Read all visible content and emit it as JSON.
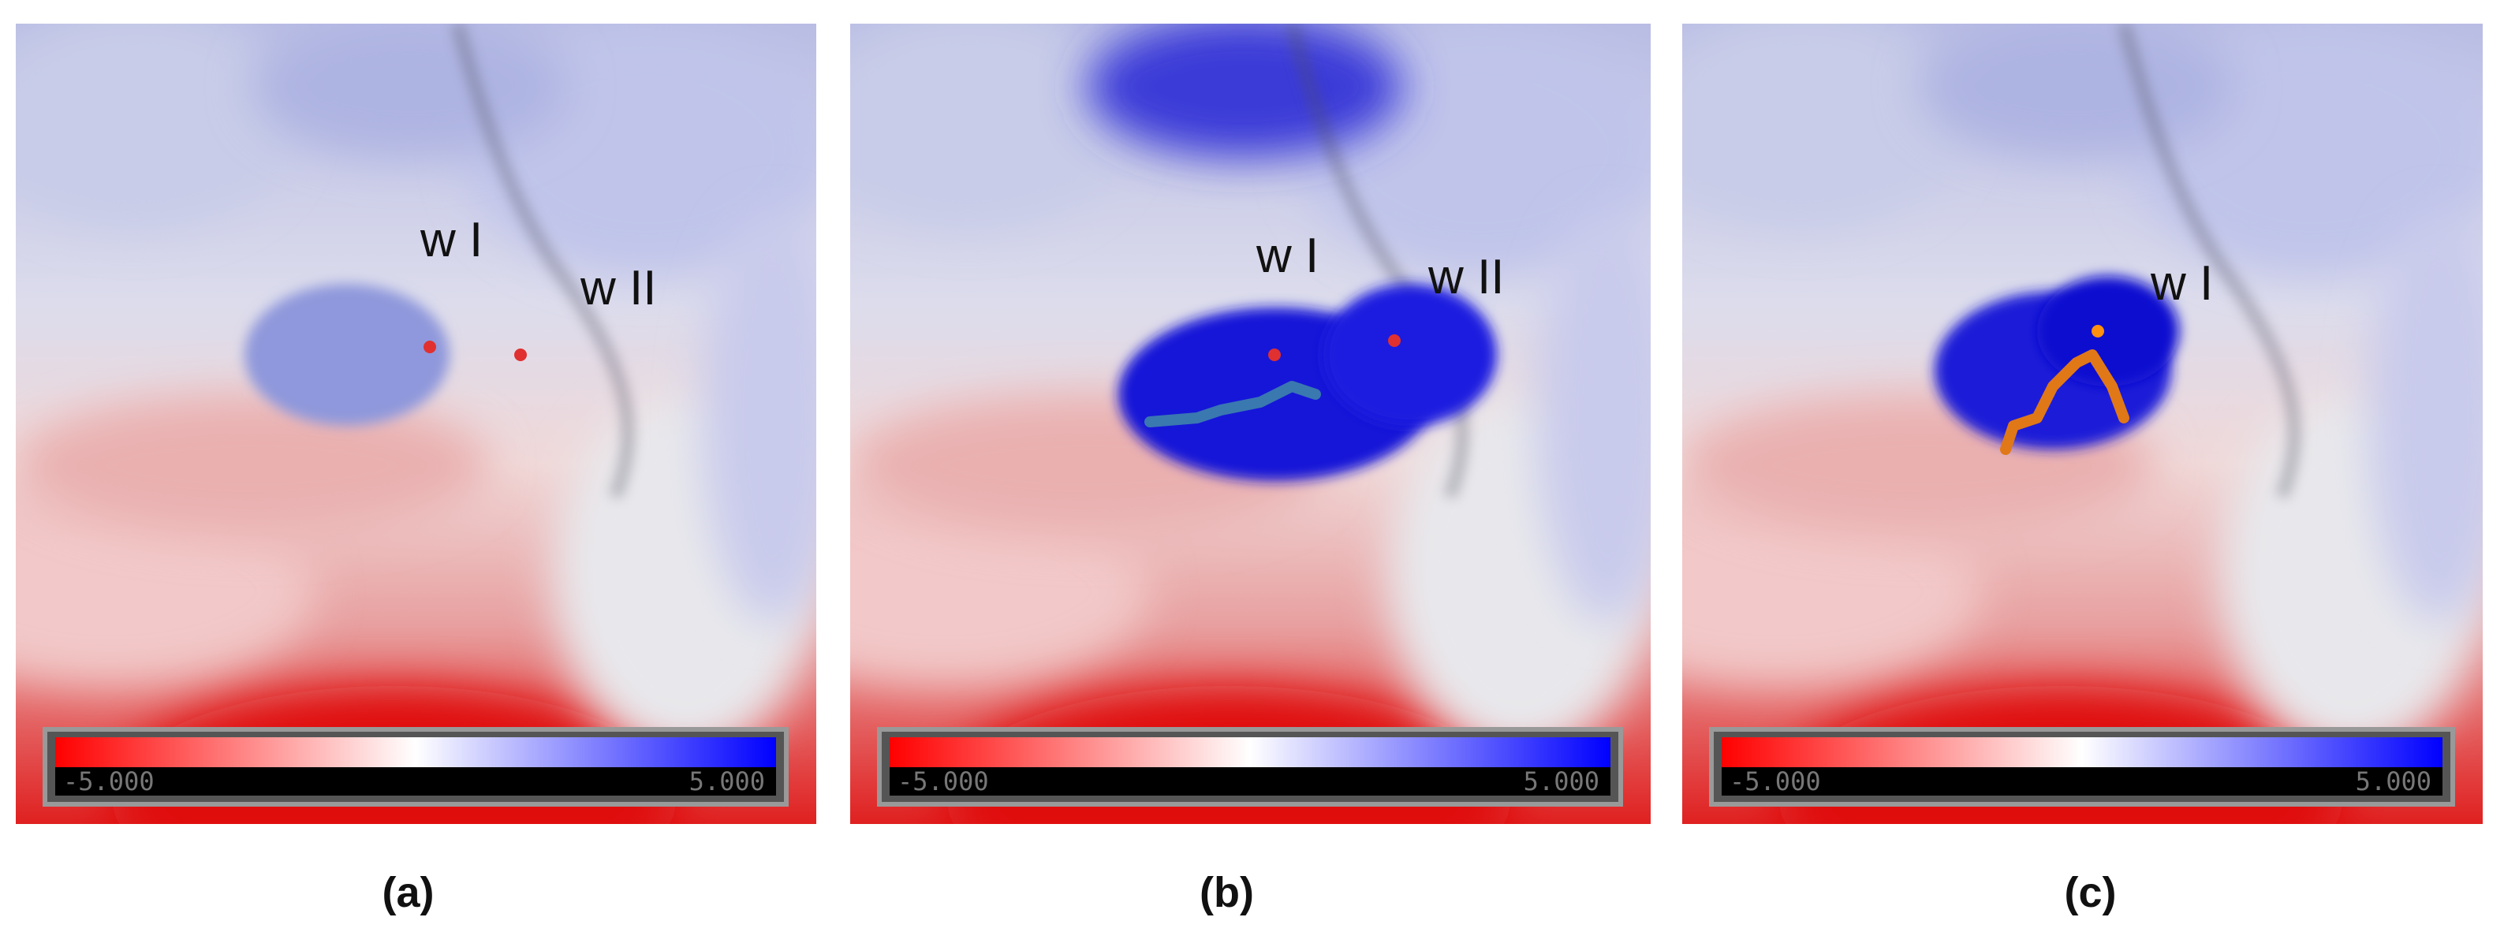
{
  "panels": [
    {
      "caption": "(a)",
      "labels": [
        "w I",
        "w II"
      ],
      "colorbar": {
        "min_label": "-5.000",
        "max_label": "5.000"
      }
    },
    {
      "caption": "(b)",
      "labels": [
        "w I",
        "w II"
      ],
      "colorbar": {
        "min_label": "-5.000",
        "max_label": "5.000"
      }
    },
    {
      "caption": "(c)",
      "labels": [
        "w I"
      ],
      "colorbar": {
        "min_label": "-5.000",
        "max_label": "5.000"
      }
    }
  ]
}
